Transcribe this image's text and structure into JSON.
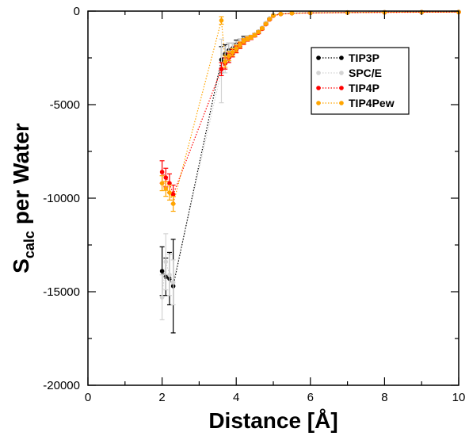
{
  "chart_data": {
    "type": "scatter",
    "xlabel": "Distance [Å]",
    "ylabel_main": "S",
    "ylabel_sub": "calc",
    "ylabel_rest": " per Water",
    "xlim": [
      0,
      10
    ],
    "ylim": [
      -20000,
      0
    ],
    "x_ticks": [
      0,
      2,
      4,
      6,
      8,
      10
    ],
    "y_ticks": [
      0,
      -5000,
      -10000,
      -15000,
      -20000
    ],
    "x_tick_labels": [
      "0",
      "2",
      "4",
      "6",
      "8",
      "10"
    ],
    "y_tick_labels": [
      "0",
      "-5000",
      "-10000",
      "-15000",
      "-20000"
    ],
    "grid": false,
    "legend_position": "top-right",
    "series": [
      {
        "name": "TIP3P",
        "color": "#000000",
        "points": [
          {
            "x": 2.0,
            "y": -13900,
            "err": 1300
          },
          {
            "x": 2.1,
            "y": -14200,
            "err": 1000
          },
          {
            "x": 2.2,
            "y": -14300,
            "err": 1400
          },
          {
            "x": 2.3,
            "y": -14700,
            "err": 2500
          },
          {
            "x": 3.6,
            "y": -2600,
            "err": 700
          },
          {
            "x": 3.7,
            "y": -2300,
            "err": 500
          },
          {
            "x": 3.8,
            "y": -2100,
            "err": 400
          },
          {
            "x": 3.9,
            "y": -2000,
            "err": 300
          },
          {
            "x": 4.0,
            "y": -1800,
            "err": 250
          },
          {
            "x": 4.1,
            "y": -1700,
            "err": 200
          },
          {
            "x": 4.2,
            "y": -1500,
            "err": 150
          },
          {
            "x": 4.3,
            "y": -1450,
            "err": 120
          },
          {
            "x": 4.4,
            "y": -1400,
            "err": 100
          },
          {
            "x": 4.5,
            "y": -1250,
            "err": 80
          },
          {
            "x": 4.6,
            "y": -1100,
            "err": 60
          },
          {
            "x": 4.7,
            "y": -900,
            "err": 50
          },
          {
            "x": 4.8,
            "y": -650,
            "err": 40
          },
          {
            "x": 4.9,
            "y": -400,
            "err": 30
          },
          {
            "x": 5.0,
            "y": -220,
            "err": 20
          },
          {
            "x": 5.2,
            "y": -150,
            "err": 15
          },
          {
            "x": 5.5,
            "y": -110,
            "err": 10
          },
          {
            "x": 6.0,
            "y": -90,
            "err": 0
          },
          {
            "x": 7.0,
            "y": -70,
            "err": 0
          },
          {
            "x": 8.0,
            "y": -60,
            "err": 0
          },
          {
            "x": 9.0,
            "y": -50,
            "err": 0
          },
          {
            "x": 10.0,
            "y": -45,
            "err": 0
          }
        ]
      },
      {
        "name": "SPC/E",
        "color": "#d3d3d3",
        "points": [
          {
            "x": 2.0,
            "y": -15300,
            "err": 1200
          },
          {
            "x": 2.1,
            "y": -13400,
            "err": 1500
          },
          {
            "x": 2.2,
            "y": -14100,
            "err": 1100
          },
          {
            "x": 2.3,
            "y": -14500,
            "err": 1200
          },
          {
            "x": 3.6,
            "y": -3200,
            "err": 1700
          },
          {
            "x": 3.7,
            "y": -2600,
            "err": 700
          },
          {
            "x": 3.8,
            "y": -2200,
            "err": 500
          },
          {
            "x": 3.9,
            "y": -2050,
            "err": 350
          },
          {
            "x": 4.0,
            "y": -1850,
            "err": 250
          },
          {
            "x": 4.1,
            "y": -1700,
            "err": 200
          },
          {
            "x": 4.2,
            "y": -1550,
            "err": 150
          },
          {
            "x": 4.3,
            "y": -1450,
            "err": 120
          },
          {
            "x": 4.4,
            "y": -1380,
            "err": 100
          },
          {
            "x": 4.5,
            "y": -1250,
            "err": 80
          },
          {
            "x": 4.6,
            "y": -1100,
            "err": 60
          },
          {
            "x": 4.7,
            "y": -900,
            "err": 50
          },
          {
            "x": 4.8,
            "y": -650,
            "err": 40
          },
          {
            "x": 4.9,
            "y": -400,
            "err": 30
          },
          {
            "x": 5.0,
            "y": -220,
            "err": 20
          },
          {
            "x": 5.2,
            "y": -150,
            "err": 15
          },
          {
            "x": 5.5,
            "y": -110,
            "err": 10
          },
          {
            "x": 6.0,
            "y": -90,
            "err": 0
          },
          {
            "x": 7.0,
            "y": -70,
            "err": 0
          },
          {
            "x": 8.0,
            "y": -60,
            "err": 0
          },
          {
            "x": 9.0,
            "y": -50,
            "err": 0
          },
          {
            "x": 10.0,
            "y": -45,
            "err": 0
          }
        ]
      },
      {
        "name": "TIP4P",
        "color": "#ff0000",
        "points": [
          {
            "x": 2.0,
            "y": -8600,
            "err": 600
          },
          {
            "x": 2.1,
            "y": -8900,
            "err": 500
          },
          {
            "x": 2.2,
            "y": -9200,
            "err": 500
          },
          {
            "x": 2.3,
            "y": -9800,
            "err": 500
          },
          {
            "x": 3.6,
            "y": -3100,
            "err": 350
          },
          {
            "x": 3.7,
            "y": -2800,
            "err": 300
          },
          {
            "x": 3.8,
            "y": -2500,
            "err": 250
          },
          {
            "x": 3.9,
            "y": -2250,
            "err": 200
          },
          {
            "x": 4.0,
            "y": -2050,
            "err": 180
          },
          {
            "x": 4.1,
            "y": -1850,
            "err": 150
          },
          {
            "x": 4.2,
            "y": -1650,
            "err": 130
          },
          {
            "x": 4.3,
            "y": -1500,
            "err": 110
          },
          {
            "x": 4.4,
            "y": -1420,
            "err": 100
          },
          {
            "x": 4.5,
            "y": -1300,
            "err": 80
          },
          {
            "x": 4.6,
            "y": -1150,
            "err": 60
          },
          {
            "x": 4.7,
            "y": -950,
            "err": 50
          },
          {
            "x": 4.8,
            "y": -700,
            "err": 40
          },
          {
            "x": 4.9,
            "y": -450,
            "err": 30
          },
          {
            "x": 5.0,
            "y": -250,
            "err": 20
          },
          {
            "x": 5.2,
            "y": -160,
            "err": 15
          },
          {
            "x": 5.5,
            "y": -120,
            "err": 10
          },
          {
            "x": 6.0,
            "y": -100,
            "err": 0
          },
          {
            "x": 7.0,
            "y": -80,
            "err": 0
          },
          {
            "x": 8.0,
            "y": -70,
            "err": 0
          },
          {
            "x": 9.0,
            "y": -60,
            "err": 0
          },
          {
            "x": 10.0,
            "y": -55,
            "err": 0
          }
        ]
      },
      {
        "name": "TIP4Pew",
        "color": "#ffa500",
        "points": [
          {
            "x": 2.0,
            "y": -9200,
            "err": 400
          },
          {
            "x": 2.1,
            "y": -9500,
            "err": 400
          },
          {
            "x": 2.2,
            "y": -9700,
            "err": 400
          },
          {
            "x": 2.3,
            "y": -10300,
            "err": 400
          },
          {
            "x": 3.6,
            "y": -500,
            "err": 200
          },
          {
            "x": 3.7,
            "y": -2700,
            "err": 300
          },
          {
            "x": 3.8,
            "y": -2400,
            "err": 250
          },
          {
            "x": 3.9,
            "y": -2200,
            "err": 200
          },
          {
            "x": 4.0,
            "y": -2000,
            "err": 180
          },
          {
            "x": 4.1,
            "y": -1800,
            "err": 150
          },
          {
            "x": 4.2,
            "y": -1600,
            "err": 130
          },
          {
            "x": 4.3,
            "y": -1480,
            "err": 110
          },
          {
            "x": 4.4,
            "y": -1400,
            "err": 100
          },
          {
            "x": 4.5,
            "y": -1280,
            "err": 80
          },
          {
            "x": 4.6,
            "y": -1120,
            "err": 60
          },
          {
            "x": 4.7,
            "y": -920,
            "err": 50
          },
          {
            "x": 4.8,
            "y": -680,
            "err": 40
          },
          {
            "x": 4.9,
            "y": -430,
            "err": 30
          },
          {
            "x": 5.0,
            "y": -240,
            "err": 20
          },
          {
            "x": 5.2,
            "y": -155,
            "err": 15
          },
          {
            "x": 5.5,
            "y": -115,
            "err": 10
          },
          {
            "x": 6.0,
            "y": -95,
            "err": 0
          },
          {
            "x": 7.0,
            "y": -75,
            "err": 0
          },
          {
            "x": 8.0,
            "y": -65,
            "err": 0
          },
          {
            "x": 9.0,
            "y": -55,
            "err": 0
          },
          {
            "x": 10.0,
            "y": -50,
            "err": 0
          }
        ]
      }
    ]
  }
}
